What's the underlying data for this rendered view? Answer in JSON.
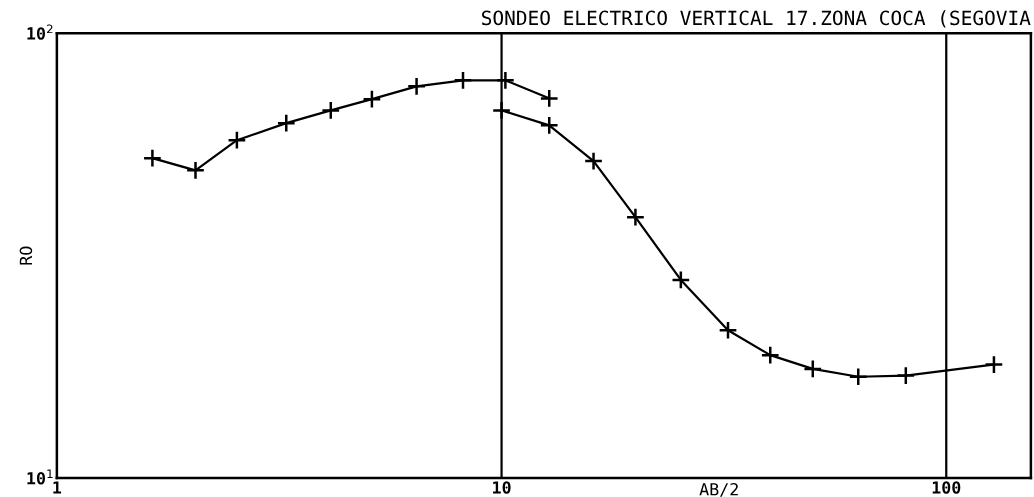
{
  "chart_data": {
    "type": "line",
    "title": "SONDEO ELECTRICO VERTICAL 17.ZONA COCA (SEGOVIA",
    "xlabel": "AB/2",
    "ylabel": "RO",
    "log": "xy",
    "grid": "x",
    "marker": "cross",
    "line_style": "solid",
    "xlim": [
      1,
      155
    ],
    "ylim": [
      10,
      100
    ],
    "xticks": [
      1,
      10,
      100
    ],
    "yticks": [
      {
        "value": 10,
        "label": "10$^{1}$"
      },
      {
        "value": 100,
        "label": "10$^{2}$"
      }
    ],
    "series": [
      {
        "color": "#000000",
        "x": [
          1.64,
          2.05,
          2.54,
          3.28,
          4.13,
          5.11,
          6.44,
          8.19,
          10.2,
          12.8
        ],
        "values": [
          52.4,
          49.2,
          57.5,
          62.8,
          67.1,
          71.1,
          76.0,
          78.4,
          78.4,
          71.4
        ]
      },
      {
        "color": "#000000",
        "x": [
          10.0,
          12.8,
          16.1,
          20.0,
          25.3,
          32.3,
          40.2,
          50.1,
          63.4,
          81.1,
          128
        ],
        "values": [
          67.1,
          62.1,
          51.6,
          38.6,
          27.9,
          21.5,
          18.9,
          17.6,
          16.9,
          17.0,
          18.0
        ]
      }
    ]
  }
}
